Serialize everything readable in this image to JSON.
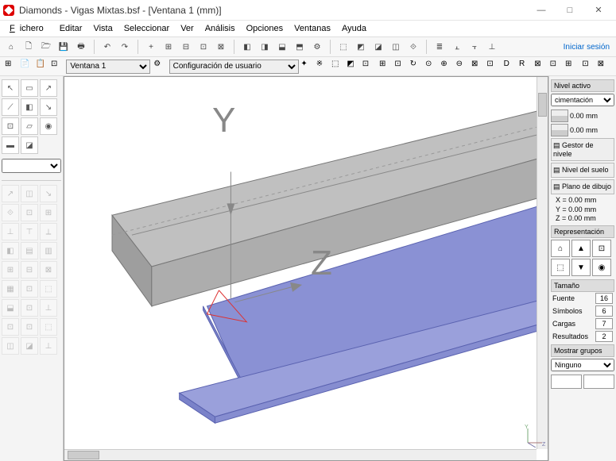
{
  "window": {
    "title": "Diamonds  -  Vigas Mixtas.bsf - [Ventana 1  (mm)]",
    "min": "—",
    "max": "□",
    "close": "✕"
  },
  "menu": {
    "fichero": "Fichero",
    "editar": "Editar",
    "vista": "Vista",
    "seleccionar": "Seleccionar",
    "ver": "Ver",
    "analisis": "Análisis",
    "opciones": "Opciones",
    "ventanas": "Ventanas",
    "ayuda": "Ayuda"
  },
  "toolbar1": {
    "login": "Iniciar sesión",
    "icons": [
      "⌂",
      "🗋",
      "🗁",
      "💾",
      "🖶",
      "↶",
      "↷",
      "+",
      "⊞",
      "⊟",
      "⊡",
      "⊠",
      "◧",
      "◨",
      "⬓",
      "⬒",
      "⚙",
      "⬚",
      "◩",
      "◪",
      "◫",
      "⟐",
      "≣",
      "⫠",
      "⫟",
      "⊥"
    ]
  },
  "subtoolbar": {
    "window_sel": "Ventana 1",
    "config_sel": "Configuración de usuario",
    "left_icons": [
      "⊞",
      "📄",
      "📋",
      "⊡"
    ],
    "mid_icons": [
      "⚙"
    ],
    "right_icons": [
      "✦",
      "※",
      "⬚",
      "◩",
      "⊡"
    ],
    "view_icons": [
      "⊞",
      "⊡",
      "↻",
      "⊙",
      "⊕",
      "⊖",
      "⊠",
      "⊡"
    ],
    "grp_icons": [
      "D",
      "R",
      "⊠",
      "⊡",
      "⊞"
    ],
    "end_icons": [
      "⊡",
      "⊠"
    ]
  },
  "left_tools": {
    "sel": "",
    "groups": [
      [
        "↖",
        "▭",
        "↗"
      ],
      [
        "⟋",
        "◧",
        "↘"
      ],
      [
        "⊡",
        "▱",
        "◉"
      ],
      [
        "▬",
        "◪"
      ]
    ],
    "dim_groups": [
      [
        "↗",
        "◫",
        "↘"
      ],
      [
        "⟐",
        "⊡",
        "⊞"
      ],
      [
        "⊥",
        "⊤",
        "⟂"
      ],
      [
        "◧",
        "▤",
        "▥"
      ],
      [
        "⊞",
        "⊟",
        "⊠"
      ],
      [
        "▦",
        "⊡",
        "⬚"
      ],
      [
        "⬓",
        "⊡",
        "⊥"
      ],
      [
        "⊡",
        "⊡",
        "⬚"
      ],
      [
        "◫",
        "◪",
        "⊥"
      ]
    ]
  },
  "right": {
    "nivel_title": "Nivel activo",
    "nivel_sel": "cimentación",
    "lvl_a": "0.00 mm",
    "lvl_b": "0.00 mm",
    "gestor": "Gestor de nivele",
    "suelo": "Nivel del suelo",
    "plano": "Plano de dibujo",
    "x": "X =    0.00 mm",
    "y": "Y =    0.00 mm",
    "z": "Z =    0.00 mm",
    "rep_title": "Representación",
    "rep_icons": [
      "⌂",
      "▲",
      "⊡",
      "⬚",
      "▼",
      "◉"
    ],
    "tam_title": "Tamaño",
    "fuente": "Fuente",
    "fuente_v": "16",
    "simbolos": "Símbolos",
    "simbolos_v": "6",
    "cargas": "Cargas",
    "cargas_v": "7",
    "resultados": "Resultados",
    "resultados_v": "2",
    "grupos_title": "Mostrar grupos",
    "grupos_sel": "Ninguno"
  },
  "canvas": {
    "y_label": "Y",
    "z_label": "Z",
    "slab_color": "#b8b8b8",
    "slab_edge": "#888",
    "beam_color": "#8a91d4",
    "beam_edge": "#5a62b0",
    "floor_color": "#e8e8e8"
  }
}
